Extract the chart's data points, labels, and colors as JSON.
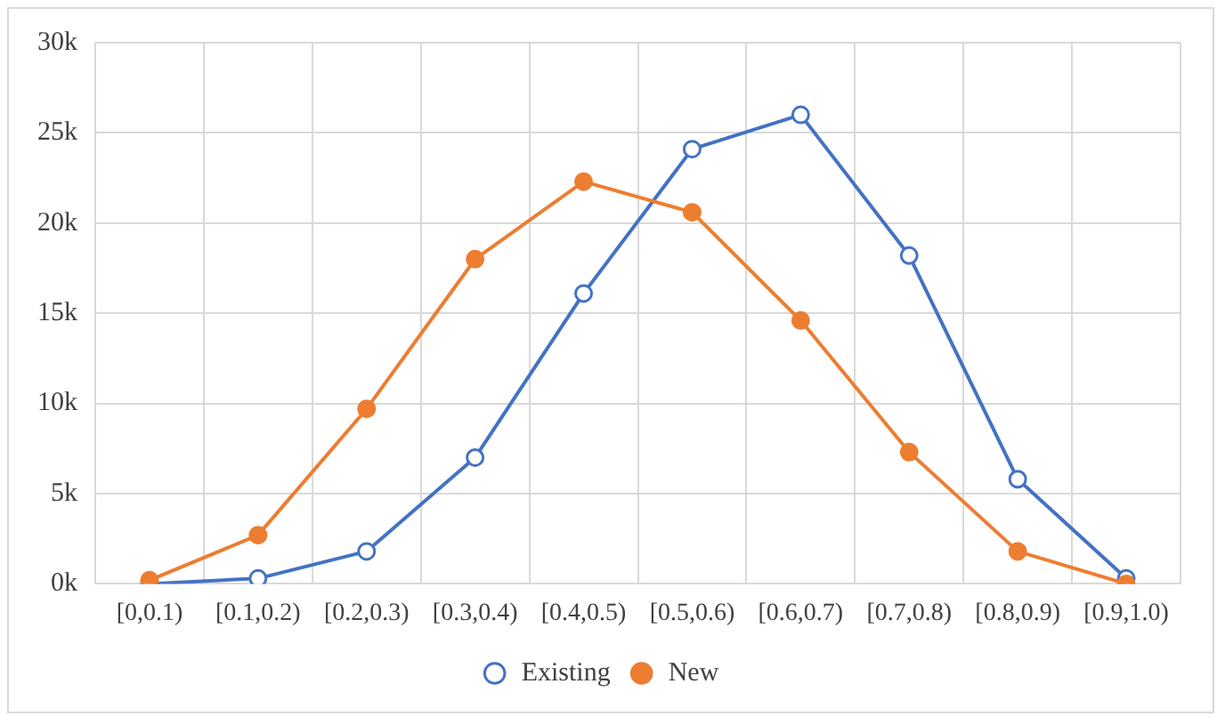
{
  "chart_data": {
    "type": "line",
    "categories": [
      "[0,0.1)",
      "[0.1,0.2)",
      "[0.2,0.3)",
      "[0.3,0.4)",
      "[0.4,0.5)",
      "[0.5,0.6)",
      "[0.6,0.7)",
      "[0.7,0.8)",
      "[0.8,0.9)",
      "[0.9,1.0)"
    ],
    "series": [
      {
        "name": "Existing",
        "color": "#4472c4",
        "values": [
          0,
          300,
          1800,
          7000,
          16100,
          24100,
          26000,
          18200,
          5800,
          300
        ]
      },
      {
        "name": "New",
        "color": "#ed7d31",
        "values": [
          200,
          2700,
          9700,
          18000,
          22300,
          20600,
          14600,
          7300,
          1800,
          0
        ]
      }
    ],
    "ylim": [
      0,
      30000
    ],
    "yticks": [
      {
        "value": 0,
        "label": "0k"
      },
      {
        "value": 5000,
        "label": "5k"
      },
      {
        "value": 10000,
        "label": "10k"
      },
      {
        "value": 15000,
        "label": "15k"
      },
      {
        "value": 20000,
        "label": "20k"
      },
      {
        "value": 25000,
        "label": "25k"
      },
      {
        "value": 30000,
        "label": "30k"
      }
    ],
    "grid": true,
    "legend": "bottom",
    "marker": "circle",
    "line_style": "solid"
  }
}
